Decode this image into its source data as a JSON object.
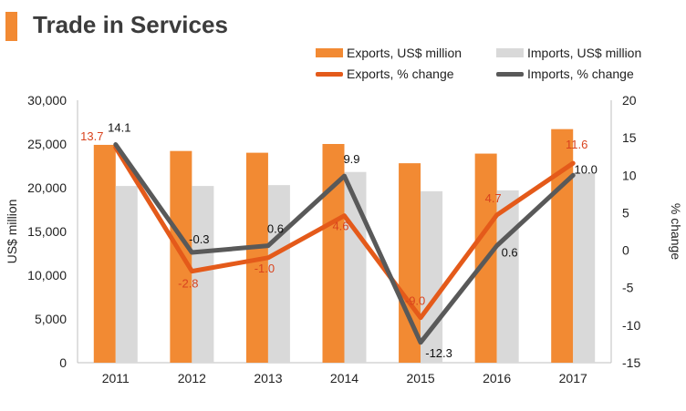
{
  "title": "Trade in Services",
  "chart_data": {
    "type": "bar+line",
    "categories": [
      "2011",
      "2012",
      "2013",
      "2014",
      "2015",
      "2016",
      "2017"
    ],
    "bar_series": [
      {
        "name": "Exports, US$ million",
        "color": "#f28a33",
        "values": [
          24900,
          24200,
          24000,
          25000,
          22800,
          23900,
          26700
        ]
      },
      {
        "name": "Imports, US$ million",
        "color": "#d9d9d9",
        "values": [
          20200,
          20200,
          20300,
          21800,
          19600,
          19700,
          21700
        ]
      }
    ],
    "line_series": [
      {
        "name": "Exports, % change",
        "color": "#e45a1a",
        "values": [
          13.7,
          -2.8,
          -1.0,
          4.6,
          -9.0,
          4.7,
          11.6
        ],
        "labels": [
          "13.7",
          "-2.8",
          "-1.0",
          "4.6",
          "-9.0",
          "4.7",
          "11.6"
        ]
      },
      {
        "name": "Imports, % change",
        "color": "#595959",
        "values": [
          14.1,
          -0.3,
          0.6,
          9.9,
          -12.3,
          0.6,
          10.0
        ],
        "labels": [
          "14.1",
          "-0.3",
          "0.6",
          "9.9",
          "-12.3",
          "0.6",
          "10.0"
        ]
      }
    ],
    "y_left": {
      "label": "US$ million",
      "min": 0,
      "max": 30000,
      "step": 5000,
      "ticks": [
        "0",
        "5,000",
        "10,000",
        "15,000",
        "20,000",
        "25,000",
        "30,000"
      ]
    },
    "y_right": {
      "label": "% change",
      "min": -15,
      "max": 20,
      "step": 5,
      "ticks": [
        "-15",
        "-10",
        "-5",
        "0",
        "5",
        "10",
        "15",
        "20"
      ]
    },
    "legend_position": "top-right"
  }
}
